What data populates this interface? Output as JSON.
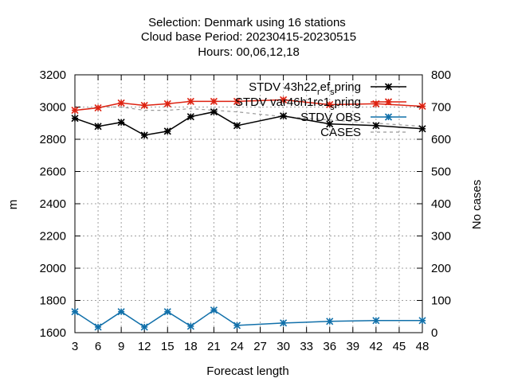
{
  "chart_data": {
    "type": "line",
    "title_lines": [
      "Selection: Denmark using    16 stations",
      "Cloud base   Period: 20230415-20230515",
      "Hours:  00,06,12,18"
    ],
    "xlabel": "Forecast length",
    "ylabel": "m",
    "y2label": "No cases",
    "xlim": [
      3,
      48
    ],
    "ylim": [
      1600,
      3200
    ],
    "y2lim": [
      0,
      800
    ],
    "x_ticks": [
      "3",
      "6",
      "9",
      "12",
      "15",
      "18",
      "21",
      "24",
      "27",
      "30",
      "33",
      "36",
      "39",
      "42",
      "45",
      "48"
    ],
    "y_ticks": [
      "1600",
      "1800",
      "2000",
      "2200",
      "2400",
      "2600",
      "2800",
      "3000",
      "3200"
    ],
    "y2_ticks": [
      "0",
      "100",
      "200",
      "300",
      "400",
      "500",
      "600",
      "700",
      "800"
    ],
    "grid": true,
    "legend_placement": "top-right",
    "series": [
      {
        "name": "STDV 43h22_ref_spring",
        "legend_parts": {
          "a": "STDV 43h22",
          "sub1": "r",
          "b": "ef",
          "sub2": "s",
          "c": "pring"
        },
        "color": "#000000",
        "axis": "y",
        "marker": "asterisk",
        "x": [
          3,
          6,
          9,
          12,
          15,
          18,
          21,
          24,
          30,
          36,
          42,
          48
        ],
        "values": [
          2930,
          2880,
          2905,
          2825,
          2850,
          2940,
          2970,
          2885,
          2945,
          2895,
          2885,
          2865
        ]
      },
      {
        "name": "STDV var46h1rc1_spring",
        "legend_parts": {
          "a": "STDV var46h1rc1",
          "sub1": "s",
          "b": "pring"
        },
        "color": "#dd2211",
        "axis": "y",
        "marker": "asterisk",
        "x": [
          3,
          6,
          9,
          12,
          15,
          18,
          21,
          24,
          30,
          36,
          42,
          48
        ],
        "values": [
          2980,
          2995,
          3025,
          3010,
          3020,
          3035,
          3035,
          3035,
          3045,
          3015,
          3020,
          3005
        ]
      },
      {
        "name": "STDV OBS",
        "color": "#1170aa",
        "axis": "y",
        "marker": "asterisk",
        "x": [
          3,
          6,
          9,
          12,
          15,
          18,
          21,
          24,
          30,
          36,
          42,
          48
        ],
        "values": [
          1730,
          1635,
          1730,
          1635,
          1730,
          1640,
          1740,
          1645,
          1660,
          1670,
          1675,
          1675
        ]
      },
      {
        "name": "CASES",
        "color": "#999999",
        "axis": "y2",
        "dashed": true,
        "x": [
          3,
          6,
          9,
          12,
          15,
          18,
          21,
          24,
          30,
          36,
          42,
          48
        ],
        "values": [
          690,
          700,
          700,
          690,
          690,
          695,
          690,
          685,
          670,
          660,
          650,
          640
        ]
      }
    ]
  }
}
